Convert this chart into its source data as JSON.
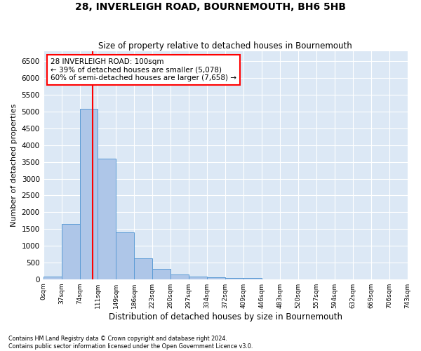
{
  "title": "28, INVERLEIGH ROAD, BOURNEMOUTH, BH6 5HB",
  "subtitle": "Size of property relative to detached houses in Bournemouth",
  "xlabel": "Distribution of detached houses by size in Bournemouth",
  "ylabel": "Number of detached properties",
  "bar_values": [
    75,
    1650,
    5075,
    3600,
    1400,
    620,
    300,
    140,
    85,
    55,
    40,
    40,
    0,
    0,
    0,
    0,
    0,
    0,
    0,
    0
  ],
  "bar_labels": [
    "0sqm",
    "37sqm",
    "74sqm",
    "111sqm",
    "149sqm",
    "186sqm",
    "223sqm",
    "260sqm",
    "297sqm",
    "334sqm",
    "372sqm",
    "409sqm",
    "446sqm",
    "483sqm",
    "520sqm",
    "557sqm",
    "594sqm",
    "632sqm",
    "669sqm",
    "706sqm",
    "743sqm"
  ],
  "n_bars": 20,
  "bar_color": "#aec6e8",
  "bar_edge_color": "#5b9bd5",
  "vline_x": 2.7,
  "annotation_text": "28 INVERLEIGH ROAD: 100sqm\n← 39% of detached houses are smaller (5,078)\n60% of semi-detached houses are larger (7,658) →",
  "annotation_box_color": "white",
  "annotation_edge_color": "red",
  "vline_color": "red",
  "ylim": [
    0,
    6800
  ],
  "yticks": [
    0,
    500,
    1000,
    1500,
    2000,
    2500,
    3000,
    3500,
    4000,
    4500,
    5000,
    5500,
    6000,
    6500
  ],
  "footer_line1": "Contains HM Land Registry data © Crown copyright and database right 2024.",
  "footer_line2": "Contains public sector information licensed under the Open Government Licence v3.0.",
  "plot_bg_color": "#dce8f5"
}
